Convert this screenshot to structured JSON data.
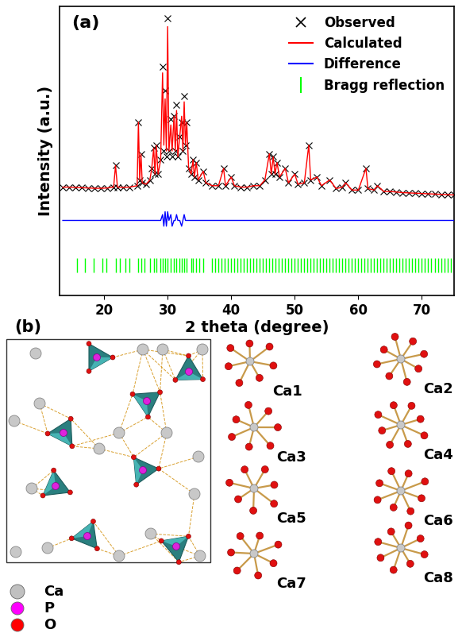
{
  "chart_data": {
    "type": "line",
    "title": "(a)",
    "x_label": "2 theta (degree)",
    "y_label": "Intensity (a.u.)",
    "xlim": [
      13,
      75
    ],
    "xticks": [
      20,
      30,
      40,
      50,
      60,
      70
    ],
    "ylim": [
      0,
      100
    ],
    "tick_labels": "x",
    "legend": "upper right",
    "x": [
      13.5,
      14.5,
      15.5,
      16.5,
      17.5,
      18.5,
      19.5,
      20.5,
      21.5,
      21.8,
      22.1,
      23,
      24,
      25.2,
      25.4,
      25.6,
      25.8,
      26.0,
      26.6,
      27.2,
      27.5,
      27.8,
      28.0,
      28.2,
      28.5,
      28.9,
      29.2,
      29.4,
      29.6,
      29.8,
      30.0,
      30.2,
      30.5,
      30.7,
      31.0,
      31.2,
      31.4,
      31.6,
      31.9,
      32.2,
      32.4,
      32.6,
      32.8,
      33.0,
      33.3,
      33.7,
      34.0,
      34.2,
      34.5,
      34.8,
      35.6,
      36,
      37,
      38,
      38.8,
      39.1,
      40,
      40.5,
      41.5,
      42.5,
      43.5,
      44.5,
      45.3,
      46.0,
      46.3,
      46.6,
      46.9,
      47.2,
      47.6,
      48.5,
      49,
      50,
      50.5,
      51.5,
      52.2,
      52.5,
      53.5,
      54.2,
      55.5,
      56.5,
      57.5,
      58,
      59,
      60,
      61.2,
      61.5,
      62.5,
      63,
      64,
      65,
      66,
      67,
      68,
      69,
      70,
      71,
      72,
      73,
      74,
      75
    ],
    "series": [
      {
        "name": "Observed",
        "type": "scatter",
        "marker": "x",
        "color": "#000000",
        "values": [
          37.5,
          37.5,
          37.4,
          37.3,
          37.2,
          37.1,
          37.1,
          37.2,
          37.5,
          45,
          37.5,
          37.4,
          37.5,
          38,
          60,
          40,
          49,
          39,
          38.5,
          40,
          44,
          51,
          42,
          52,
          42,
          47,
          79,
          50,
          71,
          48,
          96,
          50,
          61,
          48,
          62,
          50,
          66,
          48,
          55,
          60,
          50,
          69,
          52,
          60,
          44,
          42,
          47,
          41,
          46,
          40,
          43,
          39,
          38,
          38,
          44,
          38,
          41,
          38,
          37.5,
          37.5,
          38,
          38,
          40,
          49,
          42,
          48,
          42,
          46,
          41,
          44,
          39,
          42,
          38.5,
          39,
          52,
          40,
          41,
          38,
          40,
          37,
          37.5,
          39,
          36.5,
          36.5,
          44,
          37,
          36.5,
          38,
          36,
          36,
          35.8,
          35.6,
          35.5,
          35.4,
          35.3,
          35.2,
          35.1,
          35,
          34.9,
          34.8
        ]
      },
      {
        "name": "Calculated",
        "type": "line",
        "color": "#ff0000",
        "values": [
          37.5,
          37.5,
          37.4,
          37.3,
          37.2,
          37.1,
          37.1,
          37.2,
          37.5,
          45,
          37.5,
          37.4,
          37.5,
          38,
          60,
          40,
          49,
          39,
          38.5,
          40,
          44,
          51,
          42,
          52,
          42,
          47,
          77,
          52,
          68,
          50,
          93,
          50,
          59,
          50,
          62,
          50,
          64,
          48,
          55,
          62,
          50,
          67,
          52,
          60,
          44,
          42,
          47,
          41,
          46,
          40,
          43,
          39,
          38,
          38,
          44,
          38,
          41,
          38,
          37.5,
          37.5,
          38,
          38,
          40,
          49,
          42,
          48,
          42,
          46,
          41,
          44,
          39,
          42,
          38.5,
          39,
          52,
          40,
          41,
          38,
          40,
          37,
          37.5,
          39,
          36.5,
          36.5,
          44,
          37,
          36.5,
          38,
          36,
          36,
          35.8,
          35.6,
          35.5,
          35.4,
          35.3,
          35.2,
          35.1,
          35,
          34.9,
          34.8
        ]
      },
      {
        "name": "Difference",
        "type": "line",
        "color": "#0000ff",
        "values": [
          26,
          26,
          26,
          26,
          26,
          26,
          26,
          26,
          26,
          26,
          26,
          26,
          26,
          26,
          26,
          26,
          26,
          26,
          26,
          26,
          26,
          26,
          26,
          26,
          26,
          26,
          28,
          24,
          29,
          24,
          29,
          26,
          28,
          24,
          26,
          26,
          28,
          26,
          26,
          24,
          26,
          28,
          26,
          26,
          26,
          26,
          26,
          26,
          26,
          26,
          26,
          26,
          26,
          26,
          26,
          26,
          26,
          26,
          26,
          26,
          26,
          26,
          26,
          26,
          26,
          26,
          26,
          26,
          26,
          26,
          26,
          26,
          26,
          26,
          26,
          26,
          26,
          26,
          26,
          26,
          26,
          26,
          26,
          26,
          26,
          26,
          26,
          26,
          26,
          26,
          26,
          26,
          26,
          26,
          26,
          26,
          26,
          26,
          26,
          26
        ]
      },
      {
        "name": "Bragg reflection",
        "type": "bragg",
        "color": "#00ff00",
        "x": [
          15.8,
          17.0,
          18.3,
          19.7,
          20.4,
          21.8,
          22.5,
          23.3,
          24.0,
          25.4,
          25.8,
          26.3,
          27.2,
          27.8,
          28.2,
          28.9,
          29.2,
          29.6,
          30.0,
          30.5,
          31.0,
          31.4,
          31.9,
          32.2,
          32.6,
          33.0,
          33.7,
          34.0,
          34.5,
          35.0,
          35.6,
          37,
          37.5,
          38,
          38.5,
          39,
          39.5,
          40,
          40.5,
          41,
          41.5,
          42,
          42.5,
          43,
          43.5,
          44,
          44.5,
          45,
          45.5,
          46,
          46.5,
          47,
          47.5,
          48,
          48.5,
          49,
          49.5,
          50,
          50.5,
          51,
          51.5,
          52,
          52.5,
          53,
          53.5,
          54,
          54.5,
          55,
          55.5,
          56,
          56.5,
          57,
          57.5,
          58,
          58.5,
          59,
          59.5,
          60,
          60.5,
          61,
          61.5,
          62,
          62.5,
          63,
          63.5,
          64,
          64.5,
          65,
          65.5,
          66,
          66.5,
          67,
          67.5,
          68,
          68.5,
          69,
          69.5,
          70,
          70.5,
          71,
          71.5,
          72,
          72.5,
          73,
          73.5,
          74,
          74.5,
          75
        ]
      }
    ]
  },
  "diagram": {
    "title": "(b)",
    "legend": [
      {
        "name": "Ca",
        "color": "#c0c0c0"
      },
      {
        "name": "P",
        "color": "#ff00ff"
      },
      {
        "name": "O",
        "color": "#ff0000"
      }
    ],
    "sites": [
      "Ca1",
      "Ca2",
      "Ca3",
      "Ca4",
      "Ca5",
      "Ca6",
      "Ca7",
      "Ca8"
    ]
  }
}
